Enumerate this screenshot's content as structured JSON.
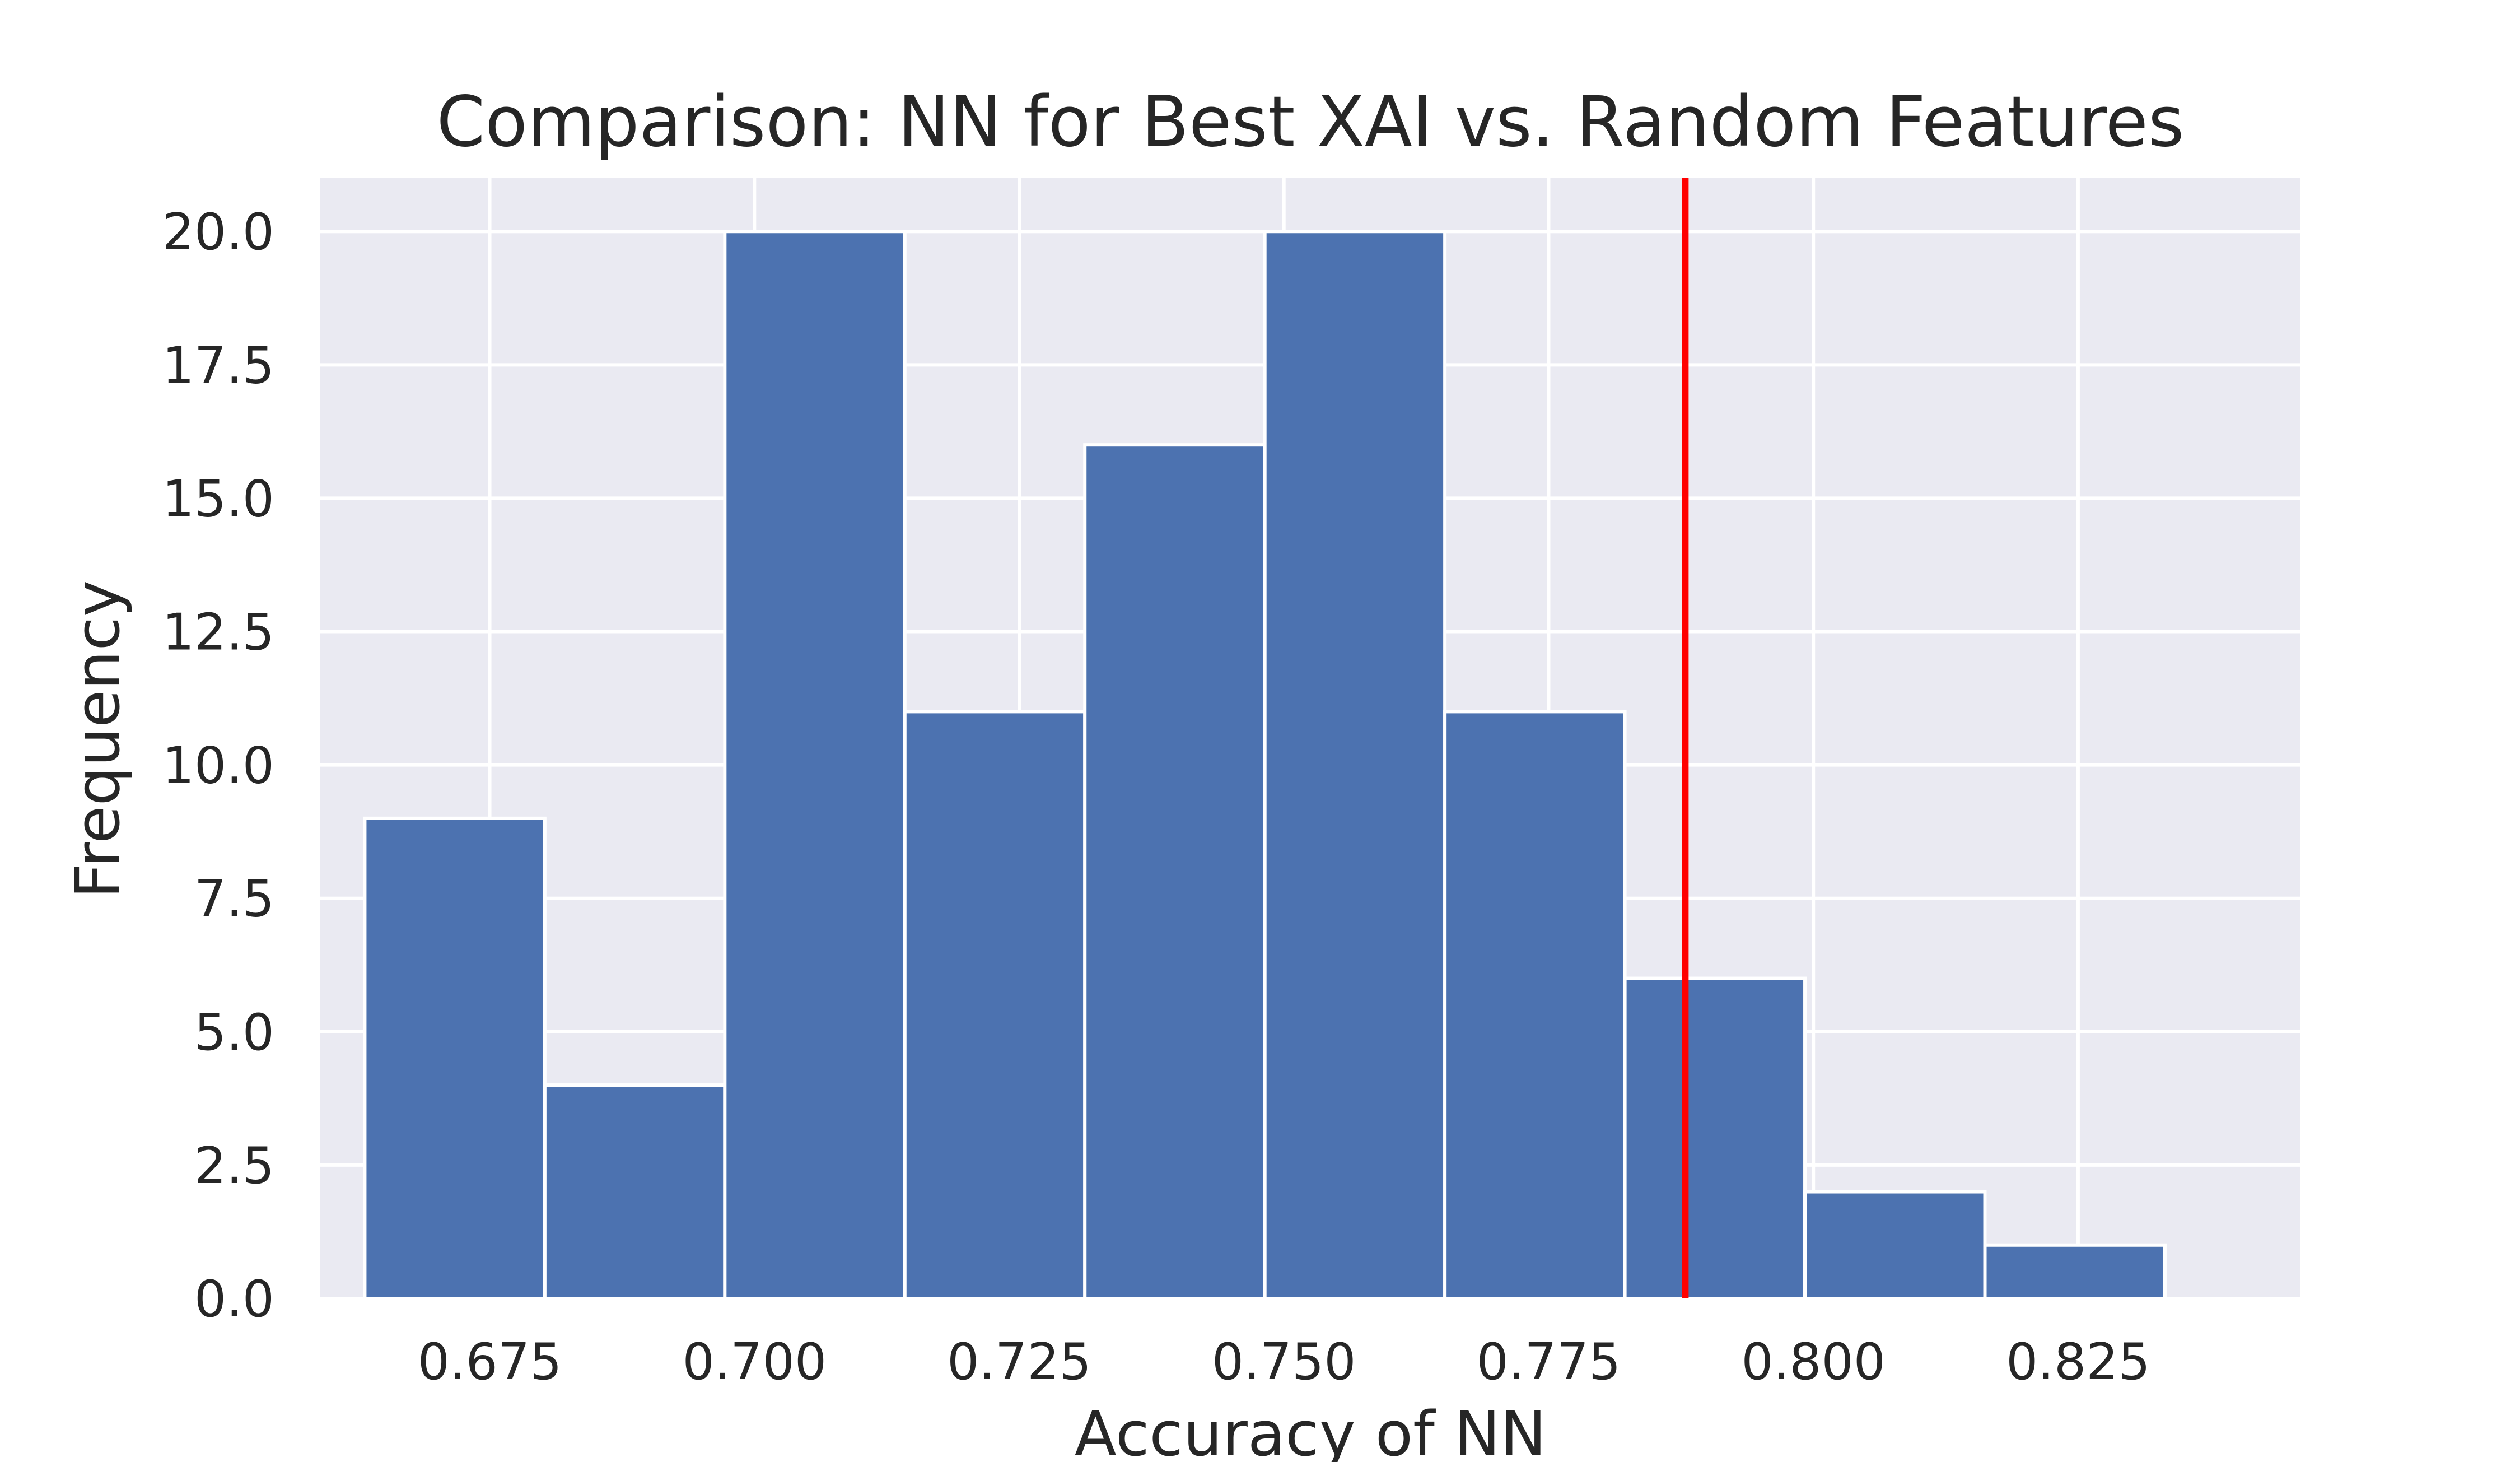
{
  "chart_data": {
    "type": "bar",
    "title": "Comparison: NN for Best XAI vs. Random Features",
    "xlabel": "Accuracy of NN",
    "ylabel": "Frequency",
    "xlim": [
      0.659,
      0.846
    ],
    "ylim": [
      0,
      21
    ],
    "x_ticks": [
      0.675,
      0.7,
      0.725,
      0.75,
      0.775,
      0.8,
      0.825
    ],
    "x_tick_labels": [
      "0.675",
      "0.700",
      "0.725",
      "0.750",
      "0.775",
      "0.800",
      "0.825"
    ],
    "y_ticks": [
      0,
      2.5,
      5,
      7.5,
      10,
      12.5,
      15,
      17.5,
      20
    ],
    "y_tick_labels": [
      "0.0",
      "2.5",
      "5.0",
      "7.5",
      "10.0",
      "12.5",
      "15.0",
      "17.5",
      "20.0"
    ],
    "bins": [
      {
        "start": 0.6632,
        "end": 0.6802,
        "count": 9
      },
      {
        "start": 0.6802,
        "end": 0.6972,
        "count": 4
      },
      {
        "start": 0.6972,
        "end": 0.7142,
        "count": 20
      },
      {
        "start": 0.7142,
        "end": 0.7312,
        "count": 11
      },
      {
        "start": 0.7312,
        "end": 0.7482,
        "count": 16
      },
      {
        "start": 0.7482,
        "end": 0.7652,
        "count": 20
      },
      {
        "start": 0.7652,
        "end": 0.7822,
        "count": 11
      },
      {
        "start": 0.7822,
        "end": 0.7992,
        "count": 6
      },
      {
        "start": 0.7992,
        "end": 0.8162,
        "count": 2
      },
      {
        "start": 0.8162,
        "end": 0.8332,
        "count": 1
      }
    ],
    "reference_line": {
      "x": 0.7879,
      "color": "#ff0000"
    },
    "bar_color": "#4c72b0",
    "background_color": "#eaeaf2",
    "grid_color": "#ffffff",
    "grid": true
  }
}
